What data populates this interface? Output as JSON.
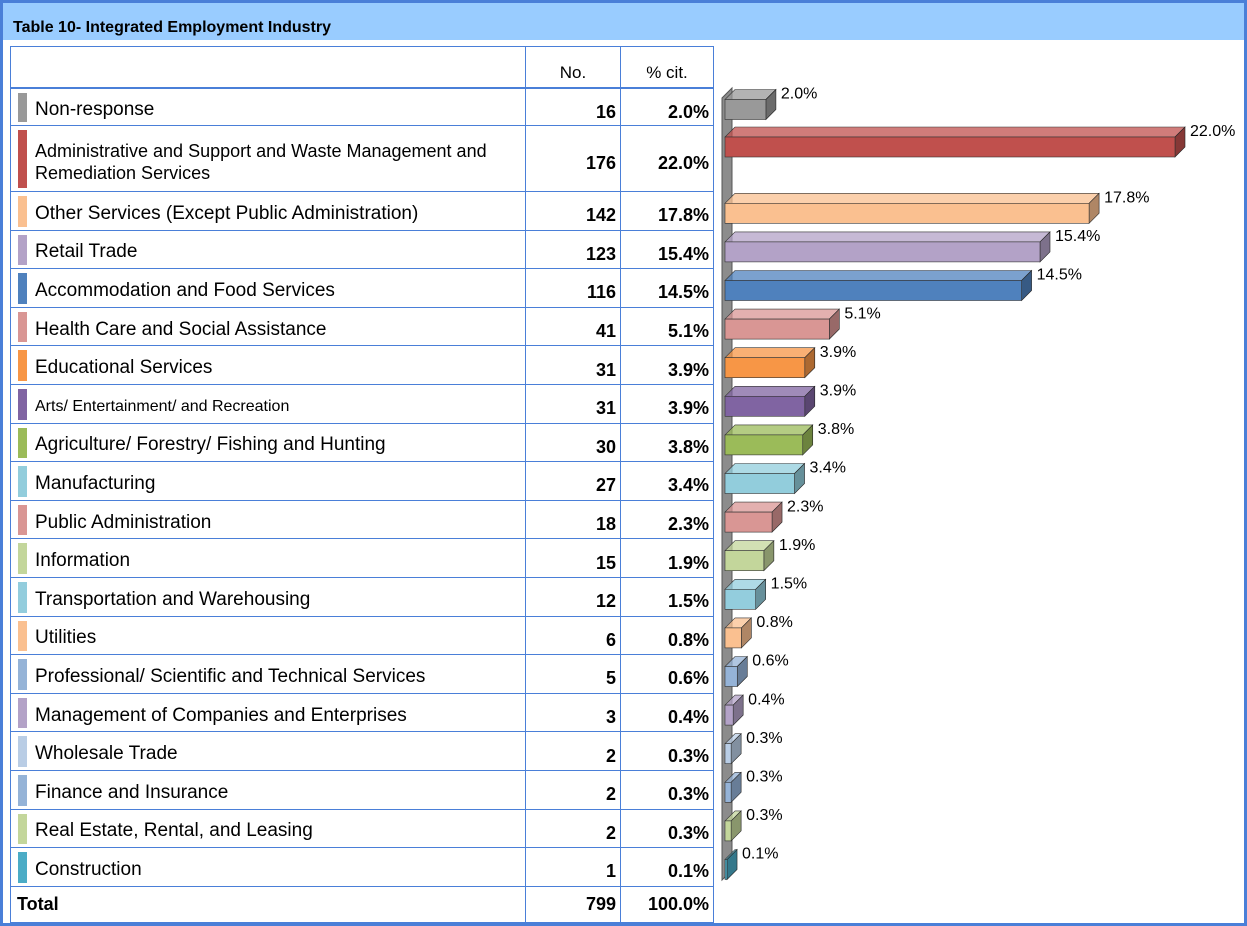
{
  "chart_data": {
    "type": "bar",
    "title": "Table 10- Integrated Employment Industry",
    "columns": [
      "No.",
      "% cit."
    ],
    "categories": [
      "Non-response",
      "Administrative and Support and Waste Management and Remediation Services",
      "Other Services (Except Public Administration)",
      "Retail Trade",
      "Accommodation and Food Services",
      "Health Care and Social Assistance",
      "Educational Services",
      "Arts/ Entertainment/ and Recreation",
      "Agriculture/ Forestry/ Fishing and Hunting",
      "Manufacturing",
      "Public Administration",
      "Information",
      "Transportation and Warehousing",
      "Utilities",
      "Professional/ Scientific and Technical Services",
      "Management of Companies and Enterprises",
      "Wholesale Trade",
      "Finance and Insurance",
      "Real Estate, Rental, and Leasing",
      "Construction"
    ],
    "counts": [
      16,
      176,
      142,
      123,
      116,
      41,
      31,
      31,
      30,
      27,
      18,
      15,
      12,
      6,
      5,
      3,
      2,
      2,
      2,
      1
    ],
    "values": [
      2.0,
      22.0,
      17.8,
      15.4,
      14.5,
      5.1,
      3.9,
      3.9,
      3.8,
      3.4,
      2.3,
      1.9,
      1.5,
      0.8,
      0.6,
      0.4,
      0.3,
      0.3,
      0.3,
      0.1
    ],
    "value_labels": [
      "2.0%",
      "22.0%",
      "17.8%",
      "15.4%",
      "14.5%",
      "5.1%",
      "3.9%",
      "3.9%",
      "3.8%",
      "3.4%",
      "2.3%",
      "1.9%",
      "1.5%",
      "0.8%",
      "0.6%",
      "0.4%",
      "0.3%",
      "0.3%",
      "0.3%",
      "0.1%"
    ],
    "colors": [
      "#999999",
      "#c0504d",
      "#fac090",
      "#b3a2c7",
      "#4f81bd",
      "#d99694",
      "#f79646",
      "#8064a2",
      "#9bbb59",
      "#92cddc",
      "#d99694",
      "#c3d69b",
      "#93cddd",
      "#fac090",
      "#95b3d7",
      "#b3a2c7",
      "#b9cde5",
      "#95b3d7",
      "#c3d69b",
      "#4bacc6"
    ],
    "total": {
      "label": "Total",
      "count": 799,
      "percent_label": "100.0%"
    }
  }
}
